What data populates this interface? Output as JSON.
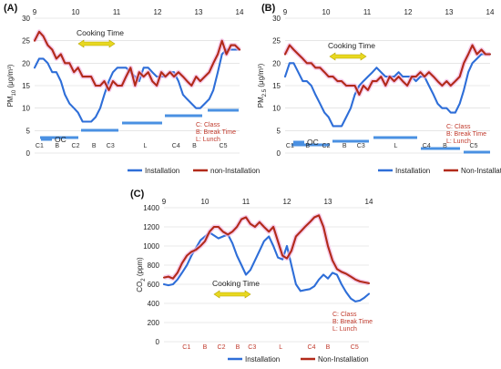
{
  "chart_data": [
    {
      "panel_label": "(A)",
      "type": "line",
      "ylabel_main": "PM",
      "ylabel_sub": "10",
      "ylabel_unit": " (μg/m³)",
      "ylim": [
        0,
        30
      ],
      "yticks": [
        "0",
        "5",
        "10",
        "15",
        "20",
        "25",
        "30"
      ],
      "top_ticks": [
        "9",
        "10",
        "11",
        "12",
        "13",
        "14"
      ],
      "annotation": "Cooking Time",
      "oc_label": "OC",
      "notes": [
        "C: Class",
        "B: Break Time",
        "L: Lunch"
      ],
      "periods": [
        "C1",
        "B",
        "C2",
        "B",
        "C3",
        "L",
        "C4",
        "B",
        "C5"
      ],
      "series": [
        {
          "name": "Installation",
          "color": "#2e6ed8",
          "values": [
            19,
            21,
            21,
            20,
            18,
            18,
            16,
            13,
            11,
            10,
            9,
            7,
            7,
            7,
            8,
            10,
            13,
            16,
            18,
            19,
            19,
            19,
            18,
            17,
            16,
            19,
            19,
            18,
            17,
            17,
            17,
            18,
            18,
            16,
            13,
            12,
            11,
            10,
            10,
            11,
            12,
            14,
            18,
            22,
            23,
            23,
            23,
            23
          ]
        },
        {
          "name": "non-Installation",
          "color": "#b22a1a",
          "values": [
            25,
            27,
            26,
            24,
            23,
            21,
            22,
            20,
            20,
            18,
            19,
            17,
            17,
            17,
            15,
            15,
            16,
            14,
            16,
            15,
            15,
            17,
            19,
            15,
            18,
            17,
            18,
            16,
            15,
            18,
            17,
            18,
            17,
            18,
            17,
            16,
            15,
            17,
            16,
            17,
            18,
            20,
            22,
            25,
            22,
            24,
            24,
            23
          ]
        }
      ],
      "x": [
        0.0,
        0.11,
        0.21,
        0.32,
        0.43,
        0.53,
        0.64,
        0.74,
        0.85,
        0.96,
        1.06,
        1.17,
        1.28,
        1.38,
        1.49,
        1.6,
        1.7,
        1.81,
        1.91,
        2.02,
        2.13,
        2.23,
        2.34,
        2.45,
        2.55,
        2.66,
        2.77,
        2.87,
        2.98,
        3.09,
        3.19,
        3.3,
        3.4,
        3.51,
        3.62,
        3.72,
        3.83,
        3.94,
        4.04,
        4.15,
        4.26,
        4.36,
        4.47,
        4.57,
        4.68,
        4.79,
        4.89,
        5.0
      ]
    },
    {
      "panel_label": "(B)",
      "type": "line",
      "ylabel_main": "PM",
      "ylabel_sub": "2.5",
      "ylabel_unit": " (μg/m³)",
      "ylim": [
        0,
        30
      ],
      "yticks": [
        "0",
        "5",
        "10",
        "15",
        "20",
        "25",
        "30"
      ],
      "top_ticks": [
        "9",
        "10",
        "11",
        "12",
        "13",
        "14"
      ],
      "annotation": "Cooking Time",
      "oc_label": "OC",
      "notes": [
        "C: Class",
        "B: Break Time",
        "L: Lunch"
      ],
      "periods": [
        "C1",
        "B",
        "C2",
        "B",
        "C3",
        "L",
        "C4",
        "B",
        "C5"
      ],
      "series": [
        {
          "name": "Installation",
          "color": "#2e6ed8",
          "values": [
            17,
            20,
            20,
            18,
            16,
            16,
            15,
            13,
            11,
            9,
            8,
            6,
            6,
            6,
            8,
            10,
            13,
            15,
            16,
            17,
            18,
            19,
            18,
            17,
            17,
            17,
            18,
            17,
            17,
            17,
            16,
            17,
            17,
            15,
            13,
            11,
            10,
            10,
            9,
            9,
            11,
            14,
            18,
            20,
            21,
            22,
            22,
            22
          ]
        },
        {
          "name": "Non-Installation",
          "color": "#b22a1a",
          "values": [
            22,
            24,
            23,
            22,
            21,
            20,
            20,
            19,
            19,
            18,
            17,
            17,
            16,
            16,
            15,
            15,
            15,
            13,
            15,
            14,
            16,
            16,
            17,
            15,
            17,
            16,
            17,
            16,
            15,
            17,
            17,
            18,
            17,
            18,
            17,
            16,
            15,
            16,
            15,
            16,
            17,
            20,
            22,
            24,
            22,
            23,
            22,
            22
          ]
        }
      ],
      "x": [
        0.0,
        0.11,
        0.21,
        0.32,
        0.43,
        0.53,
        0.64,
        0.74,
        0.85,
        0.96,
        1.06,
        1.17,
        1.28,
        1.38,
        1.49,
        1.6,
        1.7,
        1.81,
        1.91,
        2.02,
        2.13,
        2.23,
        2.34,
        2.45,
        2.55,
        2.66,
        2.77,
        2.87,
        2.98,
        3.09,
        3.19,
        3.3,
        3.4,
        3.51,
        3.62,
        3.72,
        3.83,
        3.94,
        4.04,
        4.15,
        4.26,
        4.36,
        4.47,
        4.57,
        4.68,
        4.79,
        4.89,
        5.0
      ]
    },
    {
      "panel_label": "(C)",
      "type": "line",
      "ylabel_main": "CO",
      "ylabel_sub": "2",
      "ylabel_unit": " (ppm)",
      "ylim": [
        0,
        1400
      ],
      "yticks": [
        "0",
        "200",
        "400",
        "600",
        "800",
        "1000",
        "1200",
        "1400"
      ],
      "top_ticks": [
        "9",
        "10",
        "11",
        "12",
        "13",
        "14"
      ],
      "annotation": "Cooking Time",
      "notes": [
        "C: Class",
        "B: Break Time",
        "L: Lunch"
      ],
      "periods": [
        "C1",
        "B",
        "C2",
        "B",
        "C3",
        "L",
        "C4",
        "B",
        "C5"
      ],
      "series": [
        {
          "name": "Installation",
          "color": "#2e6ed8",
          "values": [
            600,
            590,
            600,
            650,
            720,
            800,
            900,
            980,
            1060,
            1100,
            1140,
            1110,
            1080,
            1100,
            1120,
            1030,
            900,
            800,
            700,
            750,
            850,
            950,
            1050,
            1100,
            1000,
            880,
            860,
            1000,
            800,
            600,
            530,
            540,
            550,
            580,
            650,
            700,
            660,
            720,
            700,
            600,
            520,
            450,
            420,
            430,
            460,
            500
          ]
        },
        {
          "name": "Non-Installation",
          "color": "#b22a1a",
          "values": [
            670,
            680,
            660,
            720,
            820,
            900,
            940,
            960,
            1000,
            1050,
            1150,
            1200,
            1200,
            1150,
            1120,
            1150,
            1200,
            1280,
            1300,
            1230,
            1200,
            1250,
            1200,
            1150,
            1200,
            1050,
            900,
            870,
            950,
            1100,
            1150,
            1200,
            1250,
            1300,
            1320,
            1200,
            1000,
            850,
            760,
            730,
            710,
            680,
            650,
            630,
            620,
            610
          ]
        }
      ],
      "x": [
        0.0,
        0.11,
        0.22,
        0.33,
        0.44,
        0.56,
        0.67,
        0.78,
        0.89,
        1.0,
        1.11,
        1.22,
        1.33,
        1.44,
        1.56,
        1.67,
        1.78,
        1.89,
        2.0,
        2.11,
        2.22,
        2.33,
        2.44,
        2.56,
        2.67,
        2.78,
        2.89,
        3.0,
        3.11,
        3.22,
        3.33,
        3.44,
        3.56,
        3.67,
        3.78,
        3.89,
        4.0,
        4.11,
        4.22,
        4.33,
        4.44,
        4.56,
        4.67,
        4.78,
        4.89,
        5.0
      ]
    }
  ]
}
